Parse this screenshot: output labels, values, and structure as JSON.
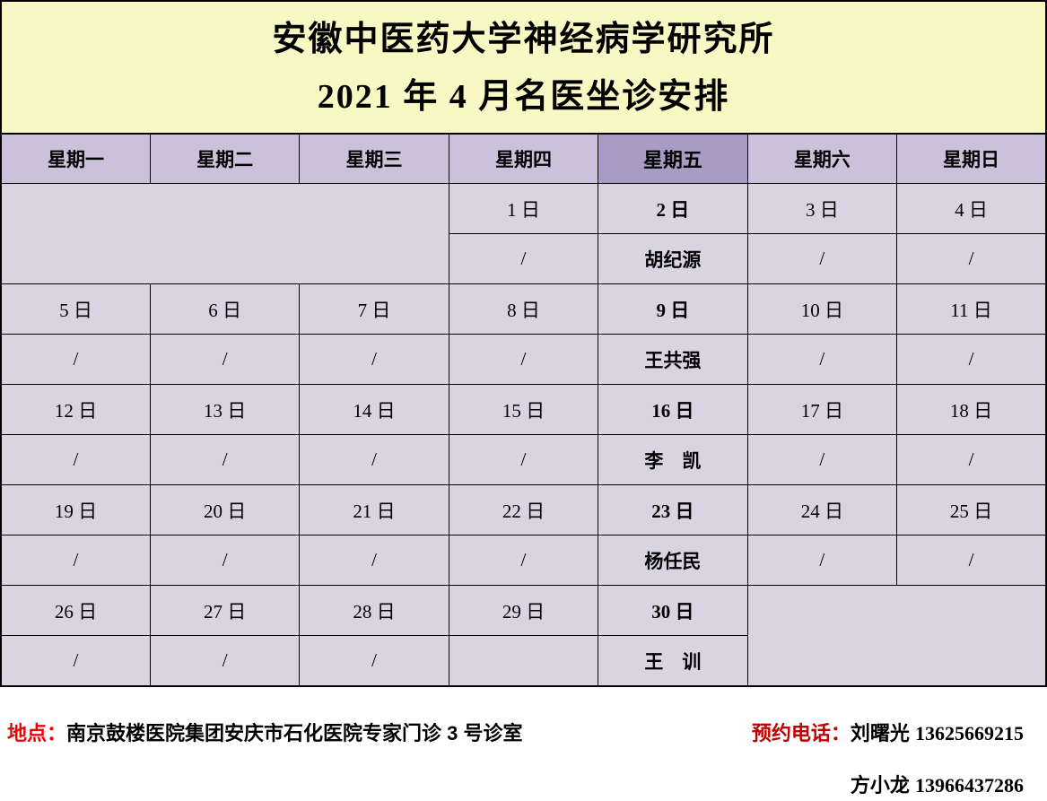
{
  "title": {
    "line1": "安徽中医药大学神经病学研究所",
    "line2": "2021 年 4 月名医坐诊安排"
  },
  "table": {
    "header": [
      "星期一",
      "星期二",
      "星期三",
      "星期四",
      "星期五",
      "星期六",
      "星期日"
    ],
    "highlighted_weekday": "星期五",
    "weeks": [
      {
        "dates": [
          null,
          null,
          null,
          "1 日",
          "2 日",
          "3 日",
          "4 日"
        ],
        "names": [
          null,
          null,
          null,
          "/",
          "胡纪源",
          "/",
          "/"
        ]
      },
      {
        "dates": [
          "5 日",
          "6 日",
          "7 日",
          "8 日",
          "9 日",
          "10 日",
          "11 日"
        ],
        "names": [
          "/",
          "/",
          "/",
          "/",
          "王共强",
          "/",
          "/"
        ]
      },
      {
        "dates": [
          "12 日",
          "13 日",
          "14 日",
          "15 日",
          "16 日",
          "17 日",
          "18 日"
        ],
        "names": [
          "/",
          "/",
          "/",
          "/",
          "李　凯",
          "/",
          "/"
        ]
      },
      {
        "dates": [
          "19 日",
          "20 日",
          "21 日",
          "22 日",
          "23 日",
          "24 日",
          "25 日"
        ],
        "names": [
          "/",
          "/",
          "/",
          "/",
          "杨任民",
          "/",
          "/"
        ]
      },
      {
        "dates": [
          "26 日",
          "27 日",
          "28 日",
          "29 日",
          "30 日",
          null,
          null
        ],
        "names": [
          "/",
          "/",
          "/",
          "",
          "王　训",
          null,
          null
        ]
      }
    ]
  },
  "footer": {
    "location_label": "地点：",
    "location": "南京鼓楼医院集团安庆市石化医院专家门诊 3 号诊室",
    "phone_label": "预约电话：",
    "contact1_name": "刘曙光",
    "contact1_number": "13625669215",
    "contact2_name": "方小龙",
    "contact2_number": "13966437286"
  },
  "colors": {
    "title_bg": "#F8F8C4",
    "header_bg": "#CCC1DA",
    "header_friday_bg": "#A89CC4",
    "cell_bg": "#D9D3E2",
    "friday_date_bg": "#FFFFD0",
    "friday_name_bg": "#FFFF4D",
    "location_label_red": "#F00000",
    "phone_label_red": "#C00000",
    "border": "#000000"
  }
}
